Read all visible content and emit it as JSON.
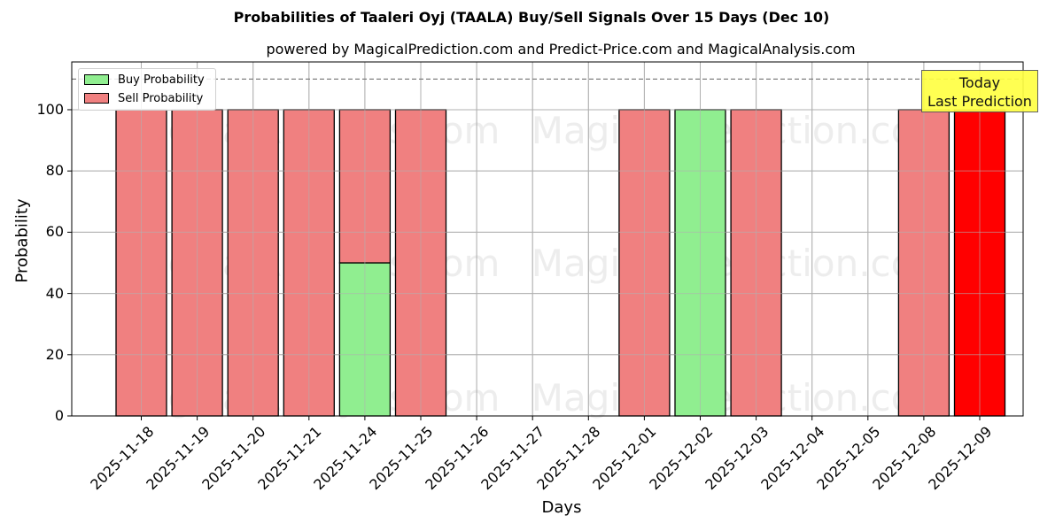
{
  "title": "Probabilities of Taaleri Oyj (TAALA) Buy/Sell Signals Over 15 Days (Dec 10)",
  "subtitle": "powered by MagicalPrediction.com and Predict-Price.com and MagicalAnalysis.com",
  "legend": {
    "buy_label": "Buy Probability",
    "sell_label": "Sell Probability"
  },
  "annotation": {
    "line1": "Today",
    "line2": "Last Prediction"
  },
  "watermarks": [
    "MagicalAnalysis.com",
    "MagicalPrediction.com"
  ],
  "colors": {
    "buy": "#90ee90",
    "sell": "#f08080",
    "today_sell": "#ff0000",
    "annotation_bg": "#ffff44",
    "grid": "#b0b0b0",
    "threshold_line": "#808080"
  },
  "chart_data": {
    "type": "bar",
    "stacked": true,
    "title": "Probabilities of Taaleri Oyj (TAALA) Buy/Sell Signals Over 15 Days (Dec 10)",
    "subtitle": "powered by MagicalPrediction.com and Predict-Price.com and MagicalAnalysis.com",
    "xlabel": "Days",
    "ylabel": "Probability",
    "ylim": [
      0,
      115.6
    ],
    "yticks": [
      0,
      20,
      40,
      60,
      80,
      100
    ],
    "grid": true,
    "legend_position": "upper left",
    "categories": [
      "2025-11-18",
      "2025-11-19",
      "2025-11-20",
      "2025-11-21",
      "2025-11-24",
      "2025-11-25",
      "2025-11-26",
      "2025-11-27",
      "2025-11-28",
      "2025-12-01",
      "2025-12-02",
      "2025-12-03",
      "2025-12-04",
      "2025-12-05",
      "2025-12-08",
      "2025-12-09"
    ],
    "series": [
      {
        "name": "Buy Probability",
        "values": [
          0,
          0,
          0,
          0,
          50,
          0,
          null,
          null,
          null,
          0,
          100,
          0,
          null,
          null,
          0,
          0
        ]
      },
      {
        "name": "Sell Probability",
        "values": [
          100,
          100,
          100,
          100,
          50,
          100,
          null,
          null,
          null,
          100,
          0,
          100,
          null,
          null,
          100,
          100
        ]
      }
    ],
    "threshold_line": {
      "y": 110,
      "style": "dashed"
    },
    "annotations": [
      {
        "text": "Today\nLast Prediction",
        "x": "2025-12-09",
        "position": "top right"
      }
    ],
    "highlight": {
      "category": "2025-12-09",
      "color": "#ff0000"
    }
  }
}
